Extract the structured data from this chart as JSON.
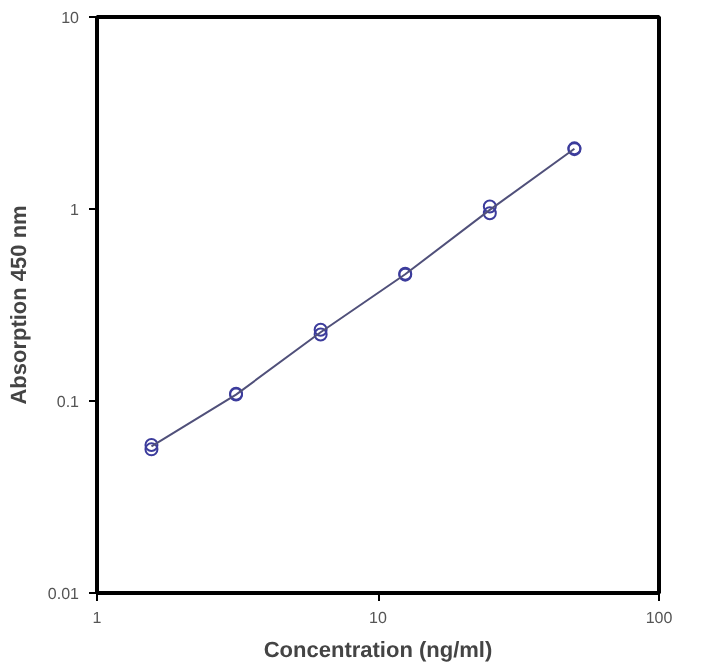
{
  "chart_data": {
    "type": "scatter",
    "xlabel": "Concentration (ng/ml)",
    "ylabel": "Absorption 450 nm",
    "log": "xy",
    "xlim": [
      1,
      100
    ],
    "ylim": [
      0.01,
      10
    ],
    "xticks": [
      1,
      10,
      100
    ],
    "yticks": [
      0.01,
      0.1,
      1,
      10
    ],
    "grid": false,
    "series": [
      {
        "marker": "circle",
        "color": "#3c3c9c",
        "x": [
          1.5625,
          1.5625,
          3.125,
          3.125,
          6.25,
          6.25,
          12.5,
          12.5,
          25,
          25,
          50,
          50
        ],
        "values": [
          0.059,
          0.056,
          0.109,
          0.108,
          0.235,
          0.222,
          0.46,
          0.455,
          1.03,
          0.95,
          2.07,
          2.05
        ]
      },
      {
        "type": "line",
        "marker": "none",
        "color": "#50507a",
        "x": [
          1.5625,
          3.125,
          6.25,
          12.5,
          25,
          50
        ],
        "values": [
          0.058,
          0.108,
          0.228,
          0.457,
          0.99,
          2.06
        ]
      }
    ]
  }
}
